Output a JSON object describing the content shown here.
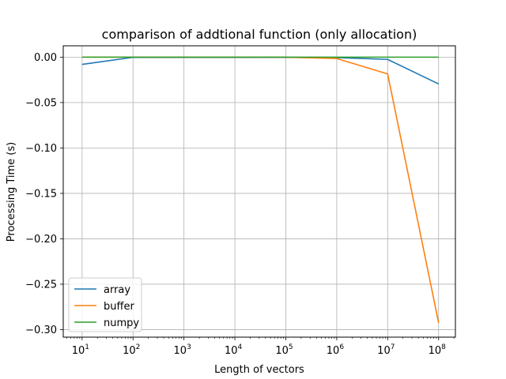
{
  "chart_data": {
    "type": "line",
    "title": "comparison of addtional function (only allocation)",
    "xlabel": "Length of vectors",
    "ylabel": "Processing Time (s)",
    "xscale": "log",
    "xlim_exp": [
      0.63,
      8.33
    ],
    "ylim": [
      -0.3083,
      0.0125
    ],
    "grid": true,
    "legend_loc": "lower left",
    "x_exponents": [
      1,
      2,
      3,
      4,
      5,
      6,
      7,
      8
    ],
    "x_tick_base": "10",
    "y_ticks": [
      0.0,
      -0.05,
      -0.1,
      -0.15,
      -0.2,
      -0.25,
      -0.3
    ],
    "y_tick_labels": [
      "0.00",
      "−0.05",
      "−0.10",
      "−0.15",
      "−0.20",
      "−0.25",
      "−0.30"
    ],
    "series": [
      {
        "name": "array",
        "color": "#1f77b4",
        "values": [
          -0.008,
          -0.0002,
          -0.0003,
          -0.0003,
          -0.0003,
          -0.0005,
          -0.0025,
          -0.0295
        ]
      },
      {
        "name": "buffer",
        "color": "#ff7f0e",
        "values": [
          0.0,
          0.0,
          0.0,
          0.0,
          -0.0001,
          -0.0015,
          -0.0185,
          -0.2925
        ]
      },
      {
        "name": "numpy",
        "color": "#2ca02c",
        "values": [
          0.0,
          0.0,
          0.0,
          0.0,
          0.0,
          0.0,
          0.0,
          0.0
        ]
      }
    ]
  }
}
